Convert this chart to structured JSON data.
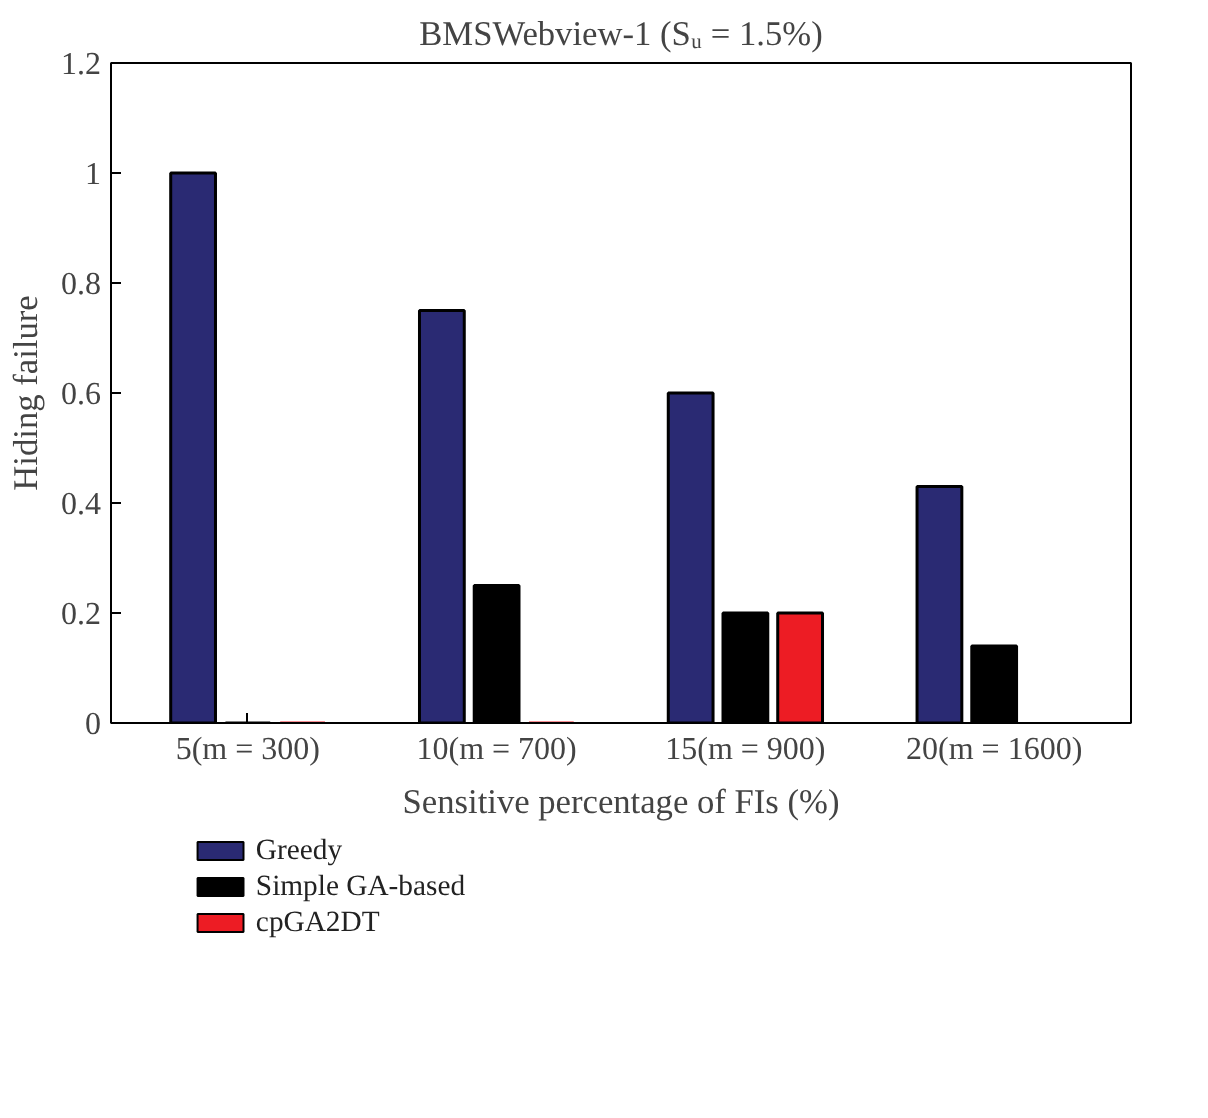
{
  "chart_data": {
    "type": "bar",
    "title": "BMSWebview-1 (Sᵤ = 1.5%)",
    "xlabel": "Sensitive percentage of FIs (%)",
    "ylabel": "Hiding failure",
    "categories": [
      "5(m = 300)",
      "10(m = 700)",
      "15(m = 900)",
      "20(m = 1600)"
    ],
    "series": [
      {
        "name": "Greedy",
        "color": "#2a2a73",
        "values": [
          1.0,
          0.75,
          0.6,
          0.43
        ]
      },
      {
        "name": "Simple GA-based",
        "color": "#000000",
        "values": [
          0,
          0.25,
          0.2,
          0.14
        ]
      },
      {
        "name": "cpGA2DT",
        "color": "#ed1c24",
        "values": [
          0,
          0,
          0.2,
          null
        ]
      }
    ],
    "ylim": [
      0,
      1.2
    ],
    "yticks": [
      0,
      0.2,
      0.4,
      0.6,
      0.8,
      1,
      1.2
    ],
    "grid": false,
    "legend": "bottom"
  }
}
